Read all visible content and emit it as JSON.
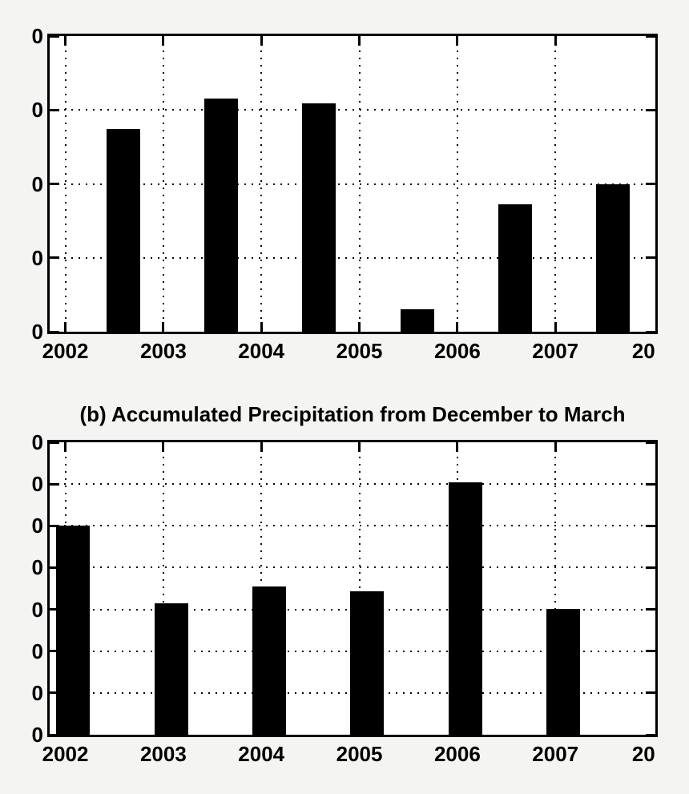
{
  "figure": {
    "background_color": "#f4f4f3",
    "plot_background_color": "#ffffff",
    "foreground_color": "#000000"
  },
  "chart_data": [
    {
      "id": "a",
      "type": "bar",
      "title": "",
      "bar_color": "#000000",
      "grid": "dotted",
      "legend": "none",
      "xlim": [
        2001.84,
        2008.02
      ],
      "ylim": [
        0,
        4
      ],
      "bar_width_years": 0.343,
      "x_ticks": [
        {
          "x": 2002,
          "label": "2002",
          "mark": true
        },
        {
          "x": 2003,
          "label": "2003",
          "mark": true
        },
        {
          "x": 2004,
          "label": "2004",
          "mark": true
        },
        {
          "x": 2005,
          "label": "2005",
          "mark": true
        },
        {
          "x": 2006,
          "label": "2006",
          "mark": true
        },
        {
          "x": 2007,
          "label": "2007",
          "mark": true
        },
        {
          "x": 2007.9,
          "label": "20",
          "mark": false
        }
      ],
      "y_ticks": [
        {
          "value": 0,
          "label": "0"
        },
        {
          "value": 1,
          "label": "0"
        },
        {
          "value": 2,
          "label": "0"
        },
        {
          "value": 3,
          "label": "0"
        },
        {
          "value": 4,
          "label": "0"
        }
      ],
      "bars": [
        {
          "x": 2002.59,
          "value": 2.74
        },
        {
          "x": 2003.59,
          "value": 3.15
        },
        {
          "x": 2004.59,
          "value": 3.09
        },
        {
          "x": 2005.59,
          "value": 0.3
        },
        {
          "x": 2006.59,
          "value": 1.72
        },
        {
          "x": 2007.59,
          "value": 2.0
        }
      ]
    },
    {
      "id": "b",
      "type": "bar",
      "title": "(b) Accumulated Precipitation from December to March",
      "bar_color": "#000000",
      "grid": "dotted",
      "legend": "none",
      "xlim": [
        2001.84,
        2008.02
      ],
      "ylim": [
        0,
        7
      ],
      "bar_width_years": 0.343,
      "x_ticks": [
        {
          "x": 2002,
          "label": "2002",
          "mark": true
        },
        {
          "x": 2003,
          "label": "2003",
          "mark": true
        },
        {
          "x": 2004,
          "label": "2004",
          "mark": true
        },
        {
          "x": 2005,
          "label": "2005",
          "mark": true
        },
        {
          "x": 2006,
          "label": "2006",
          "mark": true
        },
        {
          "x": 2007,
          "label": "2007",
          "mark": true
        },
        {
          "x": 2007.9,
          "label": "20",
          "mark": false
        }
      ],
      "y_ticks": [
        {
          "value": 0,
          "label": "0"
        },
        {
          "value": 1,
          "label": "0"
        },
        {
          "value": 2,
          "label": "0"
        },
        {
          "value": 3,
          "label": "0"
        },
        {
          "value": 4,
          "label": "0"
        },
        {
          "value": 5,
          "label": "0"
        },
        {
          "value": 6,
          "label": "0"
        },
        {
          "value": 7,
          "label": "0"
        }
      ],
      "bars": [
        {
          "x": 2002.08,
          "value": 5.0
        },
        {
          "x": 2003.08,
          "value": 3.15
        },
        {
          "x": 2004.08,
          "value": 3.55
        },
        {
          "x": 2005.08,
          "value": 3.43
        },
        {
          "x": 2006.08,
          "value": 6.04
        },
        {
          "x": 2007.08,
          "value": 3.01
        }
      ]
    }
  ]
}
